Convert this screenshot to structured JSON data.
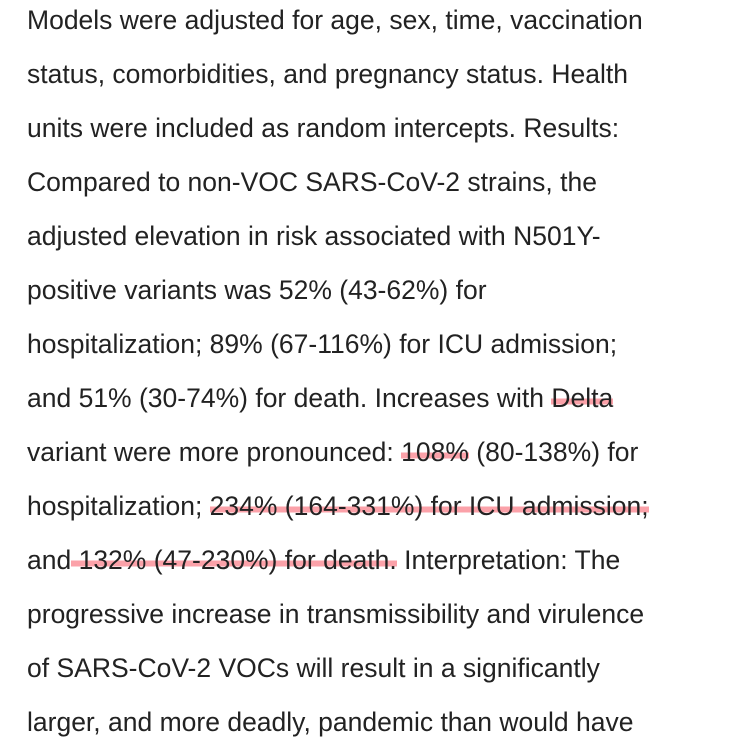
{
  "lines": [
    [
      {
        "text": "Models were adjusted for age, sex, time, vaccination"
      }
    ],
    [
      {
        "text": "status, comorbidities, and pregnancy status. Health"
      }
    ],
    [
      {
        "text": "units were included as random intercepts. Results:"
      }
    ],
    [
      {
        "text": "Compared to non-VOC SARS-CoV-2 strains, the"
      }
    ],
    [
      {
        "text": "adjusted elevation in risk associated with N501Y-"
      }
    ],
    [
      {
        "text": "positive variants was 52% (43-62%) for"
      }
    ],
    [
      {
        "text": "hospitalization; 89% (67-116%) for ICU admission;"
      }
    ],
    [
      {
        "text": "and 51% (30-74%) for death. Increases with "
      },
      {
        "text": "Delta",
        "highlight": true
      }
    ],
    [
      {
        "text": "variant were more pronounced: "
      },
      {
        "text": "108%",
        "highlight": true
      },
      {
        "text": " (80-138%) for"
      }
    ],
    [
      {
        "text": "hospitalization; "
      },
      {
        "text": "234% (164-331%) for ICU admission;",
        "highlight": true
      }
    ],
    [
      {
        "text": "and"
      },
      {
        "text": " 132% (47-230%) for death.",
        "highlight": true
      },
      {
        "text": " Interpretation: The"
      }
    ],
    [
      {
        "text": "progressive increase in transmissibility and virulence"
      }
    ],
    [
      {
        "text": "of SARS-CoV-2 VOCs will result in a significantly"
      }
    ],
    [
      {
        "text": "larger, and more deadly, pandemic than would have"
      }
    ]
  ]
}
